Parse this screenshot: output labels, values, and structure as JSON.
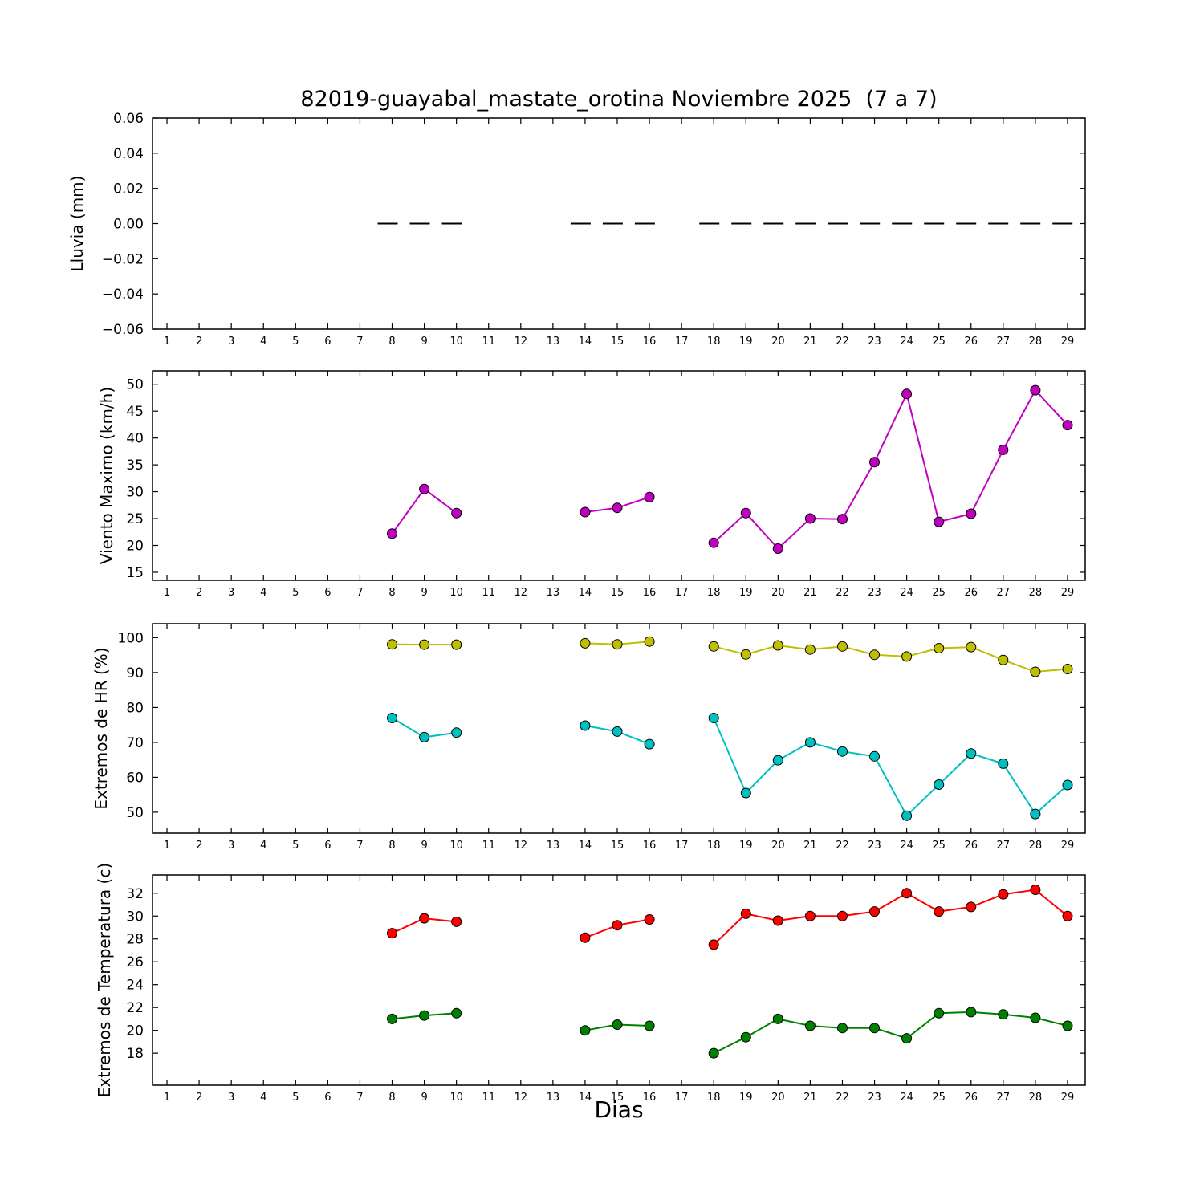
{
  "title": "82019-guayabal_mastate_orotina Noviembre 2025  (7 a 7)",
  "xlabel": "Dias",
  "xticks": [
    1,
    2,
    3,
    4,
    5,
    6,
    7,
    8,
    9,
    10,
    11,
    12,
    13,
    14,
    15,
    16,
    17,
    18,
    19,
    20,
    21,
    22,
    23,
    24,
    25,
    26,
    27,
    28,
    29
  ],
  "colors": {
    "rain": "#000000",
    "wind": "#bf00bf",
    "hr_max": "#bfbf00",
    "hr_min": "#00bfbf",
    "temp_max": "#ff0000",
    "temp_min": "#008000"
  },
  "chart_data": [
    {
      "type": "line",
      "ylabel": "Lluvia (mm)",
      "ylim": [
        -0.06,
        0.06
      ],
      "yticks": [
        -0.06,
        -0.04,
        -0.02,
        0,
        0.02,
        0.04,
        0.06
      ],
      "ytick_labels": [
        "−0.06",
        "−0.04",
        "−0.02",
        "0.00",
        "0.02",
        "0.04",
        "0.06"
      ],
      "grid": false,
      "legend": "none",
      "series": [
        {
          "name": "Lluvia",
          "color": "#000000",
          "linestyle": "dashed",
          "marker": false,
          "extend": 0.45,
          "x": [
            8,
            9,
            10,
            14,
            15,
            16,
            18,
            19,
            20,
            21,
            22,
            23,
            24,
            25,
            26,
            27,
            28,
            29
          ],
          "y": [
            0,
            0,
            0,
            0,
            0,
            0,
            0,
            0,
            0,
            0,
            0,
            0,
            0,
            0,
            0,
            0,
            0,
            0
          ]
        }
      ]
    },
    {
      "type": "line",
      "ylabel": "Viento Maximo (km/h)",
      "ylim": [
        13.5,
        52.5
      ],
      "yticks": [
        15,
        20,
        25,
        30,
        35,
        40,
        45,
        50
      ],
      "grid": false,
      "legend": "none",
      "series": [
        {
          "name": "Viento Maximo",
          "color": "#bf00bf",
          "linestyle": "solid",
          "marker": true,
          "x": [
            8,
            9,
            10,
            14,
            15,
            16,
            18,
            19,
            20,
            21,
            22,
            23,
            24,
            25,
            26,
            27,
            28,
            29
          ],
          "y": [
            22.2,
            30.5,
            26.0,
            26.2,
            27.0,
            29.0,
            20.5,
            26.0,
            19.4,
            25.0,
            24.9,
            35.5,
            48.2,
            24.4,
            25.9,
            37.8,
            48.9,
            42.4
          ]
        }
      ]
    },
    {
      "type": "line",
      "ylabel": "Extremos de HR (%)",
      "ylim": [
        44,
        104
      ],
      "yticks": [
        50,
        60,
        70,
        80,
        90,
        100
      ],
      "grid": false,
      "legend": "none",
      "series": [
        {
          "name": "HR maxima",
          "color": "#bfbf00",
          "linestyle": "solid",
          "marker": true,
          "x": [
            8,
            9,
            10,
            14,
            15,
            16,
            18,
            19,
            20,
            21,
            22,
            23,
            24,
            25,
            26,
            27,
            28,
            29
          ],
          "y": [
            98.1,
            98.0,
            98.0,
            98.4,
            98.1,
            98.9,
            97.5,
            95.2,
            97.8,
            96.6,
            97.5,
            95.1,
            94.6,
            97.0,
            97.3,
            93.6,
            90.2,
            91.0
          ]
        },
        {
          "name": "HR minima",
          "color": "#00bfbf",
          "linestyle": "solid",
          "marker": true,
          "x": [
            8,
            9,
            10,
            14,
            15,
            16,
            18,
            19,
            20,
            21,
            22,
            23,
            24,
            25,
            26,
            27,
            28,
            29
          ],
          "y": [
            77.0,
            71.5,
            72.8,
            74.8,
            73.1,
            69.5,
            77.0,
            55.5,
            64.9,
            70.0,
            67.4,
            66.0,
            49.0,
            57.9,
            66.8,
            63.9,
            49.5,
            57.8
          ]
        }
      ]
    },
    {
      "type": "line",
      "ylabel": "Extremos de Temperatura (c)",
      "ylim": [
        15.2,
        33.6
      ],
      "yticks": [
        18,
        20,
        22,
        24,
        26,
        28,
        30,
        32
      ],
      "grid": false,
      "legend": "none",
      "series": [
        {
          "name": "Temperatura maxima",
          "color": "#ff0000",
          "linestyle": "solid",
          "marker": true,
          "x": [
            8,
            9,
            10,
            14,
            15,
            16,
            18,
            19,
            20,
            21,
            22,
            23,
            24,
            25,
            26,
            27,
            28,
            29
          ],
          "y": [
            28.5,
            29.8,
            29.5,
            28.1,
            29.2,
            29.7,
            27.5,
            30.2,
            29.6,
            30.0,
            30.0,
            30.4,
            32.0,
            30.4,
            30.8,
            31.9,
            32.3,
            30.0
          ]
        },
        {
          "name": "Temperatura minima",
          "color": "#008000",
          "linestyle": "solid",
          "marker": true,
          "x": [
            8,
            9,
            10,
            14,
            15,
            16,
            18,
            19,
            20,
            21,
            22,
            23,
            24,
            25,
            26,
            27,
            28,
            29
          ],
          "y": [
            21.0,
            21.3,
            21.5,
            20.0,
            20.5,
            20.4,
            18.0,
            19.4,
            21.0,
            20.4,
            20.2,
            20.2,
            19.3,
            21.5,
            21.6,
            21.4,
            21.1,
            20.4
          ]
        }
      ]
    }
  ]
}
